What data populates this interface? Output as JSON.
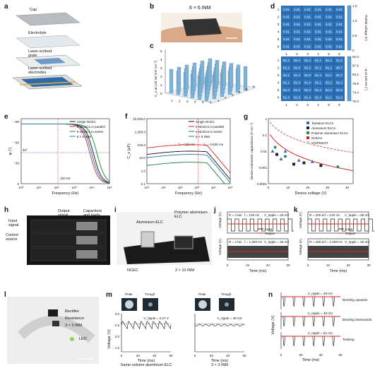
{
  "panel_letters": [
    "a",
    "b",
    "c",
    "d",
    "e",
    "f",
    "g",
    "h",
    "i",
    "j",
    "k",
    "l",
    "m",
    "n"
  ],
  "panel_a": {
    "layers": [
      "Cap",
      "Electrolyte",
      "Laser-scribed\ngrate",
      "Laser-scribed\nelectrodes"
    ]
  },
  "panel_b": {
    "title": "6 × 6 INM"
  },
  "panel_c": {
    "zlabel": "C_s at 120 Hz (mF cm⁻²)",
    "zticks": [
      "0",
      "1",
      "2",
      "3",
      "4",
      "5"
    ],
    "xticks": [
      "1",
      "2",
      "3",
      "4",
      "5",
      "6"
    ],
    "yticks": [
      "1",
      "2",
      "3",
      "4",
      "5",
      "6"
    ]
  },
  "panel_d": {
    "top_values": [
      [
        "0.01",
        "0.01",
        "0.01",
        "0.01",
        "0.01",
        "0.01"
      ],
      [
        "0.01",
        "0.01",
        "0.01",
        "0.01",
        "0.01",
        "0.01"
      ],
      [
        "0.01",
        "0.01",
        "0.01",
        "0.01",
        "0.01",
        "0.01"
      ],
      [
        "0.01",
        "0.01",
        "0.01",
        "0.01",
        "0.01",
        "0.01"
      ],
      [
        "0.01",
        "0.01",
        "0.01",
        "0.01",
        "0.01",
        "0.01"
      ],
      [
        "0.01",
        "0.01",
        "0.01",
        "0.01",
        "0.01",
        "0.01"
      ]
    ],
    "top_ylabel": "Partial voltage (V)",
    "top_yticks": [
      "1.5",
      "1.0",
      "0.5",
      "0"
    ],
    "bottom_values": [
      [
        "81.2",
        "81.4",
        "81.2",
        "81.1",
        "81.2",
        "81.2"
      ],
      [
        "81.2",
        "81.4",
        "81.2",
        "81.1",
        "81.1",
        "80.7"
      ],
      [
        "81.1",
        "81.4",
        "81.0",
        "81.4",
        "81.1",
        "81.2"
      ],
      [
        "81.1",
        "81.4",
        "81.4",
        "81.1",
        "81.2",
        "81.2"
      ],
      [
        "81.3",
        "81.2",
        "81.3",
        "81.4",
        "81.3",
        "81.6"
      ],
      [
        "81.3",
        "81.3",
        "81.4",
        "81.4",
        "81.1",
        "81.2"
      ]
    ],
    "bottom_ylabel": "−φ at 120 Hz (°)",
    "bottom_yticks": [
      "92.0",
      "87.6",
      "83.2",
      "78.8",
      "74.4",
      "70.0"
    ],
    "axis_ticks": [
      "1",
      "2",
      "3",
      "4",
      "5",
      "6"
    ]
  },
  "panel_e": {
    "xlabel": "Frequency (Hz)",
    "ylabel": "φ (°)",
    "annotation_120": "120 Hz",
    "annotation_45": "45°",
    "legend": [
      "Single NCEC",
      "6 NCECs in parallel",
      "6 NCECs in series",
      "6 × 6 INM"
    ],
    "yticks": [
      "−90",
      "−60",
      "−30",
      "0"
    ],
    "xticks": [
      "10⁰",
      "10¹",
      "10²",
      "10³",
      "10⁴",
      "10⁵"
    ]
  },
  "panel_f": {
    "xlabel": "Frequency (Hz)",
    "ylabel": "C_s (μF)",
    "legend": [
      "Single NCEC",
      "6 NCECs in parallel",
      "6 NCECs in series",
      "6 × 6 INM"
    ],
    "f0": "f₀ = 121 Hz",
    "tau": "τ₀ = 0.826 ms",
    "yticks": [
      "10,000.0",
      "1,000.0",
      "100.0",
      "10.0",
      "1.0",
      "0.1"
    ],
    "xticks": [
      "10⁰",
      "10¹",
      "10²",
      "10³",
      "10⁴",
      "10⁵"
    ]
  },
  "panel_g": {
    "xlabel": "Device voltage (V)",
    "ylabel": "Device volumetric capacitance (F cm⁻³)",
    "legend": [
      "Tantalum ELCs",
      "Aluminium ELCs",
      "Polymer aluminium ELCs",
      "NCECs",
      "VG/PEDOT"
    ],
    "yticks": [
      "1",
      "0.1",
      "0.01",
      "0.001",
      "0.0001"
    ],
    "xticks": [
      "0",
      "10",
      "20",
      "30",
      "40"
    ]
  },
  "panel_h": {
    "labels": [
      "Input signal",
      "Control source",
      "Output signal",
      "Capacitors and loads"
    ]
  },
  "panel_i": {
    "labels": [
      "Aluminium ELC",
      "Polymer aluminium ELC",
      "NCEC",
      "2 × 10 INM"
    ]
  },
  "panel_j": {
    "top": {
      "R": "R = 2 kΩ",
      "f": "f = 120 Hz",
      "v": "V_ripple = 26 mV"
    },
    "bottom": {
      "R": "R = 2 kΩ",
      "f": "f = 1,000 Hz",
      "v": "V_ripple = 26 mV"
    },
    "legend": [
      "Input",
      "Output"
    ],
    "xlabel": "Time (ms)",
    "ylabel": "Voltage (V)",
    "xticks": [
      "0",
      "10",
      "20",
      "30"
    ]
  },
  "panel_k": {
    "top": {
      "R": "R = 200 Ω",
      "f": "f = 120 Hz",
      "v": "V_ripple = 88 mV"
    },
    "bottom": {
      "R": "R = 200 Ω",
      "f": "f = 1,000 Hz",
      "v": "V_ripple = 25 mV"
    },
    "legend": [
      "Input",
      "Output"
    ],
    "xlabel": "Time (ms)",
    "ylabel": "Voltage (V)",
    "xticks": [
      "0",
      "10",
      "20",
      "30"
    ]
  },
  "panel_l": {
    "labels": [
      "Rectifier",
      "Resistance",
      "3 × 3 INM",
      "LED"
    ]
  },
  "panel_m": {
    "peak": "Peak",
    "trough": "Trough",
    "ripple_left": "V_ripple = 0.27 V",
    "ripple_right": "V_ripple = 48 mV",
    "caption_left": "Same-volume aluminium ELC",
    "caption_right": "3 × 3 INM",
    "xlabel": "Time (ms)",
    "ylabel": "Voltage (V)",
    "yticks": [
      "3.0",
      "2.5",
      "2.0",
      "1.5"
    ],
    "xticks": [
      "0",
      "20",
      "40",
      "60"
    ]
  },
  "panel_n": {
    "ripples": [
      "V_ripple = 49 mV",
      "V_ripple = 48 mV",
      "V_ripple = 51 mV"
    ],
    "states": [
      "Bending upwards",
      "Bending downwards",
      "Twisting"
    ],
    "xlabel": "Time (ms)",
    "ylabel": "Voltage (V)",
    "xticks": [
      "0",
      "20",
      "40",
      "60"
    ]
  },
  "colors": {
    "black": "#111111",
    "red": "#d62728",
    "blue": "#1f6fb2",
    "green": "#2e8b57",
    "darkgreen": "#1b7f3a",
    "bluecell": "#2b6aa8",
    "bar": "#7fb3d5"
  }
}
